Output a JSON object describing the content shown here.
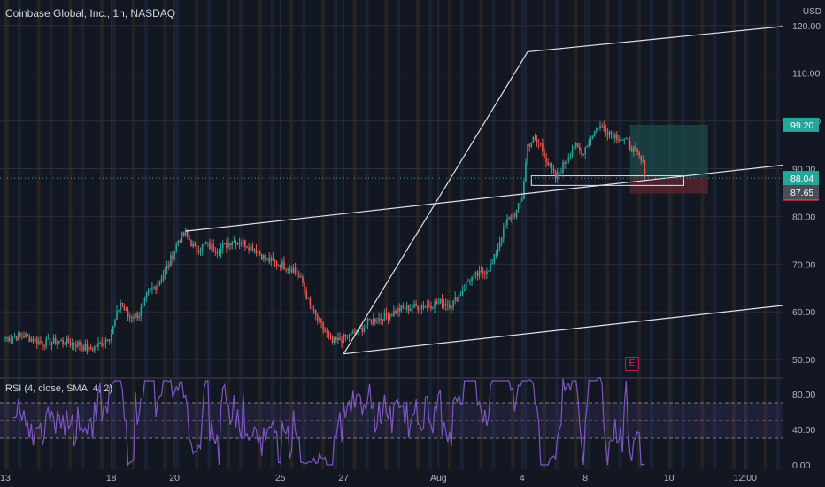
{
  "header": {
    "symbol_title": "Coinbase Global, Inc., 1h, NASDAQ",
    "currency": "USD",
    "rsi_title": "RSI (4, close, SMA, 4, 2)",
    "event_badge": "E"
  },
  "colors": {
    "background": "#131722",
    "up": "#26a69a",
    "down": "#ef5350",
    "rsi_line": "#7e57c2",
    "grid": "#2a2e39",
    "channel": "#e0e3eb",
    "target_zone": "#1c4a48",
    "stop_zone": "#5a2630"
  },
  "chart_data": [
    {
      "type": "candlestick",
      "title": "Coinbase Global, Inc., 1h, NASDAQ",
      "ylabel": "USD",
      "ylim": [
        46.5,
        122
      ],
      "y_ticks": [
        "120.00",
        "110.00",
        "100.00",
        "90.00",
        "80.00",
        "70.00",
        "60.00",
        "50.00"
      ],
      "x_ticks": [
        "13",
        "18",
        "20",
        "25",
        "27",
        "Aug",
        "4",
        "8",
        "10",
        "12:00"
      ],
      "x_tick_index": [
        0,
        57,
        91,
        148,
        182,
        233,
        278,
        312,
        357,
        398
      ],
      "bars": 345,
      "close_path": [
        [
          0,
          54.5
        ],
        [
          10,
          55.0
        ],
        [
          20,
          53.5
        ],
        [
          30,
          53.8
        ],
        [
          40,
          53.2
        ],
        [
          45,
          52.0
        ],
        [
          52,
          53.5
        ],
        [
          57,
          55.5
        ],
        [
          62,
          62
        ],
        [
          66,
          59
        ],
        [
          72,
          59.5
        ],
        [
          77,
          64
        ],
        [
          82,
          66
        ],
        [
          88,
          70
        ],
        [
          93,
          75
        ],
        [
          97,
          76.5
        ],
        [
          102,
          73
        ],
        [
          108,
          74
        ],
        [
          115,
          73
        ],
        [
          122,
          75
        ],
        [
          128,
          74.5
        ],
        [
          135,
          73
        ],
        [
          140,
          71
        ],
        [
          148,
          70
        ],
        [
          155,
          69
        ],
        [
          160,
          66
        ],
        [
          164,
          61
        ],
        [
          170,
          57
        ],
        [
          176,
          53.5
        ],
        [
          182,
          54.5
        ],
        [
          190,
          56
        ],
        [
          196,
          58
        ],
        [
          204,
          59
        ],
        [
          212,
          60.5
        ],
        [
          220,
          61
        ],
        [
          228,
          61.5
        ],
        [
          234,
          62
        ],
        [
          240,
          61.5
        ],
        [
          245,
          64
        ],
        [
          250,
          67
        ],
        [
          256,
          68
        ],
        [
          262,
          70
        ],
        [
          266,
          75
        ],
        [
          270,
          79
        ],
        [
          275,
          81
        ],
        [
          278,
          84
        ],
        [
          281,
          95
        ],
        [
          284,
          96
        ],
        [
          288,
          95
        ],
        [
          292,
          91
        ],
        [
          296,
          88
        ],
        [
          302,
          92
        ],
        [
          306,
          95
        ],
        [
          310,
          93
        ],
        [
          314,
          96
        ],
        [
          319,
          99
        ],
        [
          324,
          98
        ],
        [
          328,
          97
        ],
        [
          333,
          96
        ],
        [
          338,
          94
        ],
        [
          343,
          91
        ],
        [
          348,
          89
        ],
        [
          352,
          88.0
        ]
      ],
      "last_price": "88.04",
      "alt_price": "87.65",
      "target_price": "99.20",
      "stop_price": "84.79",
      "channels": [
        {
          "name": "",
          "from": [
            182,
            51.2
          ],
          "to": [
            436,
            62.1
          ]
        },
        {
          "name": "",
          "from": [
            97,
            76.9
          ],
          "to": [
            436,
            91.5
          ]
        },
        {
          "name": "",
          "from": [
            281,
            114.5
          ],
          "to": [
            436,
            120.5
          ]
        },
        {
          "name": "",
          "from": [
            182,
            51.2
          ],
          "to": [
            281,
            114.5
          ]
        }
      ],
      "target_zone": [
        99.2,
        88.04
      ],
      "stop_zone": [
        88.04,
        84.79
      ],
      "entry_box": [
        86.5,
        88.5
      ]
    },
    {
      "type": "line",
      "title": "RSI (4, close, SMA, 4, 2)",
      "ylim": [
        -5,
        95
      ],
      "y_ticks": [
        "80.00",
        "40.00",
        "0.00"
      ],
      "bands": [
        70,
        30
      ]
    }
  ]
}
